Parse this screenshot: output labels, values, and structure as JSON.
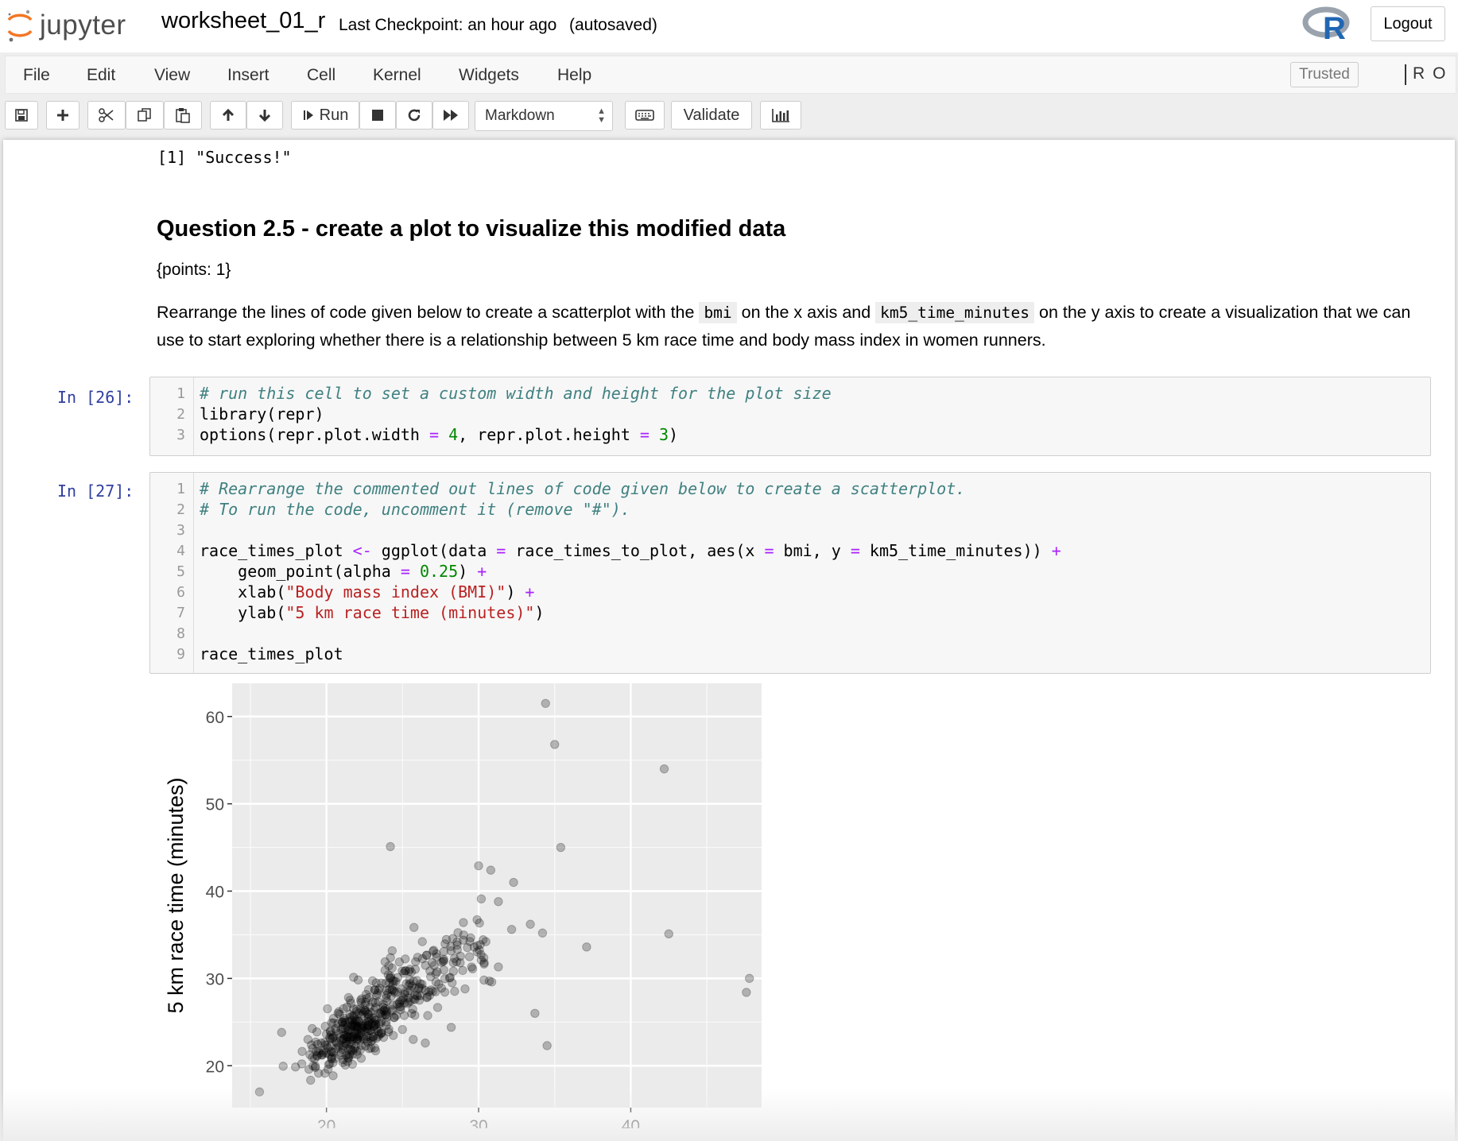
{
  "header": {
    "logo_text": "jupyter",
    "notebook_name": "worksheet_01_r",
    "checkpoint": "Last Checkpoint: an hour ago",
    "autosave": "(autosaved)",
    "logout_label": "Logout"
  },
  "menu": {
    "items": [
      "File",
      "Edit",
      "View",
      "Insert",
      "Cell",
      "Kernel",
      "Widgets",
      "Help"
    ],
    "trusted_label": "Trusted",
    "kernel_name": "R",
    "kernel_status": "O"
  },
  "toolbar": {
    "run_label": "Run",
    "cell_type": "Markdown",
    "validate_label": "Validate"
  },
  "colors": {
    "prompt": "#303f9f",
    "comment": "#408080",
    "operator": "#aa22ff",
    "number": "#008800",
    "string": "#ba2121"
  },
  "notebook": {
    "previous_output": "[1] \"Success!\"",
    "markdown": {
      "heading": "Question 2.5 - create a plot to visualize this modified data",
      "points": "{points: 1}",
      "para_part1": "Rearrange the lines of code given below to create a scatterplot with the ",
      "code1": "bmi",
      "para_part2": " on the x axis and ",
      "code2": "km5_time_minutes",
      "para_part3": " on the y axis to create a visualization that we can use to start exploring whether there is a relationship between 5 km race time and body mass index in women runners."
    },
    "cell26": {
      "prompt": "In [26]:",
      "line_numbers": [
        "1",
        "2",
        "3"
      ],
      "comment": "# run this cell to set a custom width and height for the plot size",
      "line2": "library(repr)",
      "l3_a": "options(repr.plot.width ",
      "l3_eq1": "=",
      "l3_num1": "4",
      "l3_b": ", repr.plot.height ",
      "l3_eq2": "=",
      "l3_num2": "3",
      "l3_c": ")"
    },
    "cell27": {
      "prompt": "In [27]:",
      "line_numbers": [
        "1",
        "2",
        "3",
        "4",
        "5",
        "6",
        "7",
        "8",
        "9"
      ],
      "comment1": "# Rearrange the commented out lines of code given below to create a scatterplot.",
      "comment2": "# To run the code, uncomment it (remove \"#\").",
      "l4_a": "race_times_plot ",
      "l4_assign": "<-",
      "l4_b": " ggplot(data ",
      "l4_eq1": "=",
      "l4_c": " race_times_to_plot, aes(x ",
      "l4_eq2": "=",
      "l4_d": " bmi, y ",
      "l4_eq3": "=",
      "l4_e": " km5_time_minutes)) ",
      "l4_plus": "+",
      "l5_a": "    geom_point(alpha ",
      "l5_eq": "=",
      "l5_num": "0.25",
      "l5_b": ") ",
      "l5_plus": "+",
      "l6_a": "    xlab(",
      "l6_str": "\"Body mass index (BMI)\"",
      "l6_b": ") ",
      "l6_plus": "+",
      "l7_a": "    ylab(",
      "l7_str": "\"5 km race time (minutes)\"",
      "l7_b": ")",
      "l9": "race_times_plot"
    }
  },
  "chart_data": {
    "type": "scatter",
    "xlabel": "Body mass index (BMI)",
    "ylabel": "5 km race time (minutes)",
    "xlim": [
      13.8,
      48.6
    ],
    "ylim": [
      15.2,
      63.8
    ],
    "xticks": [
      20,
      30,
      40
    ],
    "yticks": [
      20,
      30,
      40,
      50,
      60
    ],
    "grid": true,
    "point_alpha": 0.25,
    "outliers": [
      [
        15.6,
        17.0
      ],
      [
        34.4,
        61.5
      ],
      [
        35.0,
        56.8
      ],
      [
        42.2,
        54.0
      ],
      [
        35.4,
        45.0
      ],
      [
        24.2,
        45.1
      ],
      [
        37.1,
        33.6
      ],
      [
        42.5,
        35.1
      ],
      [
        47.8,
        30.0
      ],
      [
        47.6,
        28.4
      ],
      [
        34.5,
        22.3
      ],
      [
        33.7,
        26.0
      ],
      [
        30.0,
        42.9
      ],
      [
        30.8,
        42.4
      ],
      [
        32.3,
        41.0
      ],
      [
        31.3,
        38.8
      ],
      [
        29.0,
        36.4
      ],
      [
        33.4,
        36.2
      ],
      [
        34.2,
        35.2
      ],
      [
        28.2,
        24.4
      ]
    ],
    "clusters": [
      {
        "center": [
          22.0,
          24.2
        ],
        "spread": [
          2.2,
          3.2
        ],
        "count": 240,
        "seed": 11
      },
      {
        "center": [
          25.0,
          29.0
        ],
        "spread": [
          2.6,
          4.0
        ],
        "count": 140,
        "seed": 23
      },
      {
        "center": [
          28.6,
          32.8
        ],
        "spread": [
          2.4,
          4.2
        ],
        "count": 60,
        "seed": 37
      },
      {
        "center": [
          19.4,
          21.2
        ],
        "spread": [
          1.3,
          2.4
        ],
        "count": 40,
        "seed": 41
      }
    ]
  }
}
